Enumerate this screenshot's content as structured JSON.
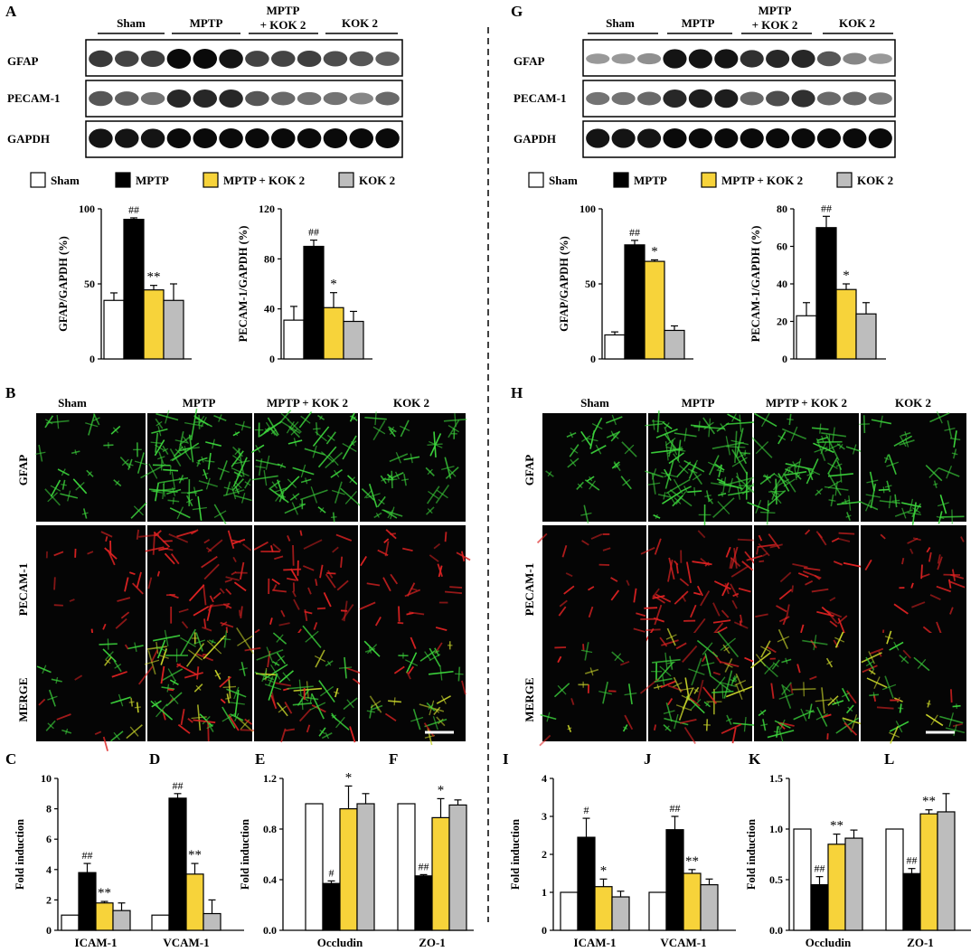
{
  "colors": {
    "sham": "#ffffff",
    "mptp": "#000000",
    "mptp_kok2": "#f7d33a",
    "kok2": "#bdbdbd",
    "gfap_stain": "#33cc33",
    "pecam_stain": "#dd2222"
  },
  "panels": {
    "A": "A",
    "B": "B",
    "C": "C",
    "D": "D",
    "E": "E",
    "F": "F",
    "G": "G",
    "H": "H",
    "I": "I",
    "J": "J",
    "K": "K",
    "L": "L"
  },
  "groups": {
    "sham": "Sham",
    "mptp": "MPTP",
    "mptp_kok2": "MPTP + KOK 2",
    "kok2": "KOK 2",
    "mptp_line1": "MPTP",
    "mptp_line2": "+ KOK 2"
  },
  "blot_rows": {
    "gfap": "GFAP",
    "pecam": "PECAM-1",
    "gapdh": "GAPDH"
  },
  "if_rows": {
    "gfap": "GFAP",
    "pecam": "PECAM-1",
    "merge": "MERGE"
  },
  "chart_data": [
    {
      "id": "A1",
      "type": "bar",
      "categories": [
        "Sham",
        "MPTP",
        "MPTP + KOK 2",
        "KOK 2"
      ],
      "values": [
        39,
        93,
        46,
        39
      ],
      "errors": [
        5,
        1,
        3,
        11
      ],
      "ylabel": "GFAP/GAPDH (%)",
      "ylim": [
        0,
        100
      ],
      "ticks": [
        0,
        50,
        100
      ],
      "annotations": [
        "",
        "##",
        "**",
        ""
      ]
    },
    {
      "id": "A2",
      "type": "bar",
      "categories": [
        "Sham",
        "MPTP",
        "MPTP + KOK 2",
        "KOK 2"
      ],
      "values": [
        31,
        90,
        41,
        30
      ],
      "errors": [
        11,
        5,
        12,
        8
      ],
      "ylabel": "PECAM-1/GAPDH (%)",
      "ylim": [
        0,
        120
      ],
      "ticks": [
        0,
        40,
        80,
        120
      ],
      "annotations": [
        "",
        "##",
        "*",
        ""
      ]
    },
    {
      "id": "G1",
      "type": "bar",
      "categories": [
        "Sham",
        "MPTP",
        "MPTP + KOK 2",
        "KOK 2"
      ],
      "values": [
        16,
        76,
        65,
        19
      ],
      "errors": [
        2,
        3,
        1,
        3
      ],
      "ylabel": "GFAP/GAPDH (%)",
      "ylim": [
        0,
        100
      ],
      "ticks": [
        0,
        50,
        100
      ],
      "annotations": [
        "",
        "##",
        "*",
        ""
      ]
    },
    {
      "id": "G2",
      "type": "bar",
      "categories": [
        "Sham",
        "MPTP",
        "MPTP + KOK 2",
        "KOK 2"
      ],
      "values": [
        23,
        70,
        37,
        24
      ],
      "errors": [
        7,
        6,
        3,
        6
      ],
      "ylabel": "PECAM-1/GAPDH (%)",
      "ylim": [
        0,
        80
      ],
      "ticks": [
        0,
        20,
        40,
        60,
        80
      ],
      "annotations": [
        "",
        "##",
        "*",
        ""
      ]
    },
    {
      "id": "CD",
      "type": "bar",
      "categories": [
        "ICAM-1",
        "VCAM-1"
      ],
      "series": [
        {
          "name": "Sham",
          "values": [
            1,
            1
          ],
          "errors": [
            0,
            0
          ]
        },
        {
          "name": "MPTP",
          "values": [
            3.8,
            8.7
          ],
          "errors": [
            0.6,
            0.3
          ]
        },
        {
          "name": "MPTP + KOK 2",
          "values": [
            1.8,
            3.7
          ],
          "errors": [
            0.1,
            0.7
          ]
        },
        {
          "name": "KOK 2",
          "values": [
            1.3,
            1.1
          ],
          "errors": [
            0.5,
            0.9
          ]
        }
      ],
      "annotations": [
        [
          "",
          "##",
          "**",
          ""
        ],
        [
          "",
          "##",
          "**",
          ""
        ]
      ],
      "ylabel": "Fold induction",
      "ylim": [
        0,
        10
      ],
      "ticks": [
        0,
        2,
        4,
        6,
        8,
        10
      ]
    },
    {
      "id": "EF",
      "type": "bar",
      "categories": [
        "Occludin",
        "ZO-1"
      ],
      "series": [
        {
          "name": "Sham",
          "values": [
            1.0,
            1.0
          ],
          "errors": [
            0,
            0
          ]
        },
        {
          "name": "MPTP",
          "values": [
            0.37,
            0.43
          ],
          "errors": [
            0.02,
            0.01
          ]
        },
        {
          "name": "MPTP + KOK 2",
          "values": [
            0.96,
            0.89
          ],
          "errors": [
            0.18,
            0.15
          ]
        },
        {
          "name": "KOK 2",
          "values": [
            1.0,
            0.99
          ],
          "errors": [
            0.08,
            0.04
          ]
        }
      ],
      "annotations": [
        [
          "",
          "#",
          "*",
          ""
        ],
        [
          "",
          "##",
          "*",
          ""
        ]
      ],
      "ylabel": "Fold induction",
      "ylim": [
        0,
        1.2
      ],
      "ticks": [
        "0.0",
        "0.4",
        "0.8",
        "1.2"
      ]
    },
    {
      "id": "IJ",
      "type": "bar",
      "categories": [
        "ICAM-1",
        "VCAM-1"
      ],
      "series": [
        {
          "name": "Sham",
          "values": [
            1,
            1
          ],
          "errors": [
            0,
            0
          ]
        },
        {
          "name": "MPTP",
          "values": [
            2.45,
            2.65
          ],
          "errors": [
            0.5,
            0.35
          ]
        },
        {
          "name": "MPTP + KOK 2",
          "values": [
            1.15,
            1.5
          ],
          "errors": [
            0.2,
            0.1
          ]
        },
        {
          "name": "KOK 2",
          "values": [
            0.88,
            1.2
          ],
          "errors": [
            0.15,
            0.15
          ]
        }
      ],
      "annotations": [
        [
          "",
          "#",
          "*",
          ""
        ],
        [
          "",
          "##",
          "**",
          ""
        ]
      ],
      "ylabel": "Fold induction",
      "ylim": [
        0,
        4
      ],
      "ticks": [
        0,
        1,
        2,
        3,
        4
      ]
    },
    {
      "id": "KL",
      "type": "bar",
      "categories": [
        "Occludin",
        "ZO-1"
      ],
      "series": [
        {
          "name": "Sham",
          "values": [
            1.0,
            1.0
          ],
          "errors": [
            0,
            0
          ]
        },
        {
          "name": "MPTP",
          "values": [
            0.45,
            0.56
          ],
          "errors": [
            0.08,
            0.05
          ]
        },
        {
          "name": "MPTP + KOK 2",
          "values": [
            0.85,
            1.15
          ],
          "errors": [
            0.1,
            0.04
          ]
        },
        {
          "name": "KOK 2",
          "values": [
            0.91,
            1.17
          ],
          "errors": [
            0.08,
            0.18
          ]
        }
      ],
      "annotations": [
        [
          "",
          "##",
          "**",
          ""
        ],
        [
          "",
          "##",
          "**",
          ""
        ]
      ],
      "ylabel": "Fold induction",
      "ylim": [
        0,
        1.5
      ],
      "ticks": [
        "0.0",
        "0.5",
        "1.0",
        "1.5"
      ]
    }
  ]
}
